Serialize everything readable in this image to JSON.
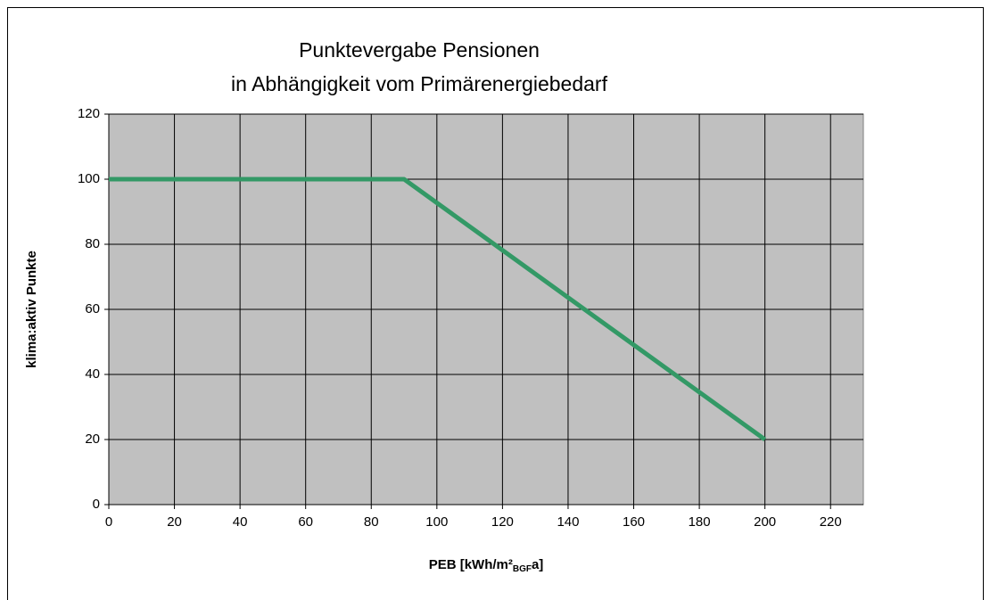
{
  "chart_data": {
    "type": "line",
    "title": [
      "Punktevergabe Pensionen",
      "in Abhängigkeit vom Primärenergiebedarf"
    ],
    "x_label": [
      "PEB [kWh/m²",
      "BGF",
      "a]"
    ],
    "y_label": "klima:aktiv Punkte",
    "x": [
      0,
      90,
      200
    ],
    "series": [
      {
        "color": "#339966",
        "values": [
          100,
          100,
          20
        ]
      }
    ],
    "xlim": [
      0,
      230
    ],
    "xticks": [
      0,
      20,
      40,
      60,
      80,
      100,
      120,
      140,
      160,
      180,
      200,
      220
    ],
    "ylim": [
      0,
      120
    ],
    "yticks": [
      0,
      20,
      40,
      60,
      80,
      100,
      120
    ],
    "grid": true
  }
}
